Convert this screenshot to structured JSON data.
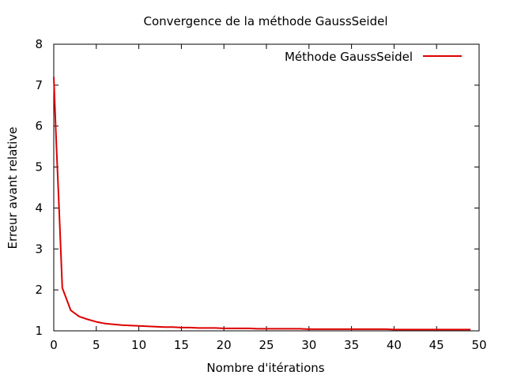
{
  "chart_data": {
    "type": "line",
    "title": "Convergence de la méthode GaussSeidel",
    "xlabel": "Nombre d'itérations",
    "ylabel": "Erreur avant relative",
    "xlim": [
      0,
      50
    ],
    "ylim": [
      1,
      8
    ],
    "xticks": [
      "0",
      "5",
      "10",
      "15",
      "20",
      "25",
      "30",
      "35",
      "40",
      "45",
      "50"
    ],
    "yticks": [
      "1",
      "2",
      "3",
      "4",
      "5",
      "6",
      "7",
      "8"
    ],
    "grid": false,
    "legend_position": "top-right",
    "series": [
      {
        "name": "Méthode GaussSeidel",
        "color": "#dd0000",
        "x": [
          0,
          0.3,
          0.6,
          1,
          2,
          3,
          4,
          5,
          6,
          7,
          8,
          9,
          10,
          11,
          12,
          13,
          14,
          15,
          16,
          17,
          18,
          19,
          20,
          21,
          22,
          23,
          24,
          25,
          26,
          27,
          28,
          29,
          30,
          31,
          32,
          33,
          34,
          35,
          36,
          37,
          38,
          39,
          40,
          41,
          42,
          43,
          44,
          45,
          46,
          47,
          48,
          49
        ],
        "y": [
          7.2,
          5.6,
          4.1,
          2.05,
          1.5,
          1.35,
          1.28,
          1.22,
          1.18,
          1.16,
          1.14,
          1.13,
          1.12,
          1.11,
          1.1,
          1.09,
          1.09,
          1.08,
          1.08,
          1.07,
          1.07,
          1.07,
          1.06,
          1.06,
          1.06,
          1.06,
          1.05,
          1.05,
          1.05,
          1.05,
          1.05,
          1.05,
          1.04,
          1.04,
          1.04,
          1.04,
          1.04,
          1.04,
          1.04,
          1.04,
          1.04,
          1.04,
          1.03,
          1.03,
          1.03,
          1.03,
          1.03,
          1.03,
          1.03,
          1.03,
          1.03,
          1.03
        ]
      }
    ]
  }
}
